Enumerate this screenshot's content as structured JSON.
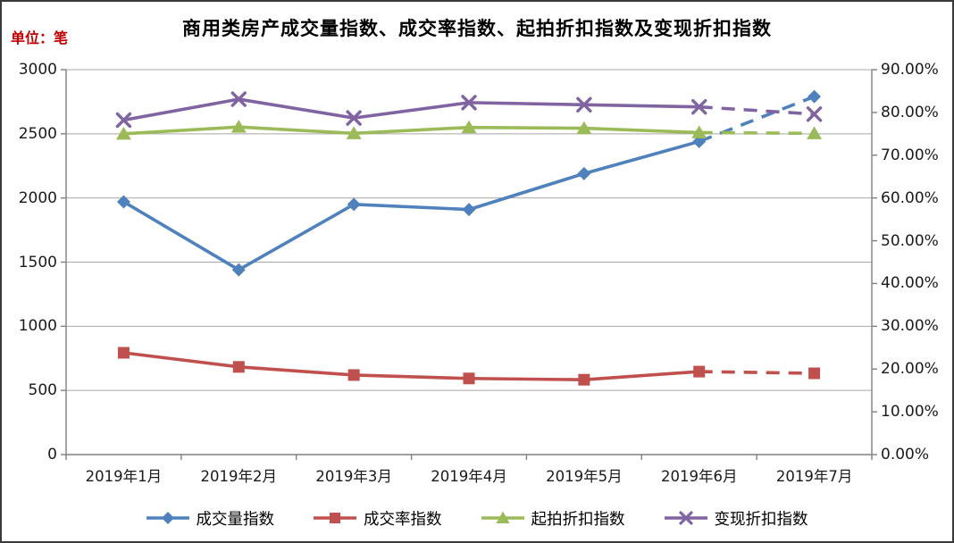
{
  "chart_data": {
    "type": "line",
    "title": "商用类房产成交量指数、成交率指数、起拍折扣指数及变现折扣指数",
    "unit_label": "单位：笔",
    "categories": [
      "2019年1月",
      "2019年2月",
      "2019年3月",
      "2019年4月",
      "2019年5月",
      "2019年6月",
      "2019年7月"
    ],
    "left_axis": {
      "min": 0,
      "max": 3000,
      "step": 500,
      "ticks": [
        "3000",
        "2500",
        "2000",
        "1500",
        "1000",
        "500",
        "0"
      ]
    },
    "right_axis": {
      "min": 0,
      "max": 90,
      "step": 10,
      "ticks": [
        "90.00%",
        "80.00%",
        "70.00%",
        "60.00%",
        "50.00%",
        "40.00%",
        "30.00%",
        "20.00%",
        "10.00%",
        "0.00%"
      ]
    },
    "series": [
      {
        "name": "成交量指数",
        "axis": "left",
        "marker": "diamond",
        "color": "#4F81BD",
        "values": [
          1970,
          1440,
          1950,
          1910,
          2190,
          2440,
          2790
        ]
      },
      {
        "name": "成交率指数",
        "axis": "right",
        "marker": "square",
        "color": "#C0504D",
        "values": [
          23.8,
          20.5,
          18.6,
          17.8,
          17.5,
          19.4,
          19.0
        ]
      },
      {
        "name": "起拍折扣指数",
        "axis": "right",
        "marker": "triangle",
        "color": "#9BBB59",
        "values": [
          75.0,
          76.6,
          75.1,
          76.5,
          76.3,
          75.3,
          75.1
        ]
      },
      {
        "name": "变现折扣指数",
        "axis": "right",
        "marker": "x",
        "color": "#8064A2",
        "values": [
          78.2,
          83.1,
          78.7,
          82.3,
          81.8,
          81.3,
          79.6
        ]
      }
    ],
    "legend": [
      "成交量指数",
      "成交率指数",
      "起拍折扣指数",
      "变现折扣指数"
    ],
    "legend_position": "bottom",
    "grid": "horizontal",
    "last_segment_dashed": true,
    "dashed_segment": "2019年6月 → 2019年7月"
  },
  "styles": {
    "unit_label_color": "#C00000",
    "grid_color": "#A8A8A8",
    "axis_color": "#808080",
    "text_color": "#1A1A1A",
    "background": "#FFFFFF",
    "frame_color": "#3A3A3A"
  }
}
